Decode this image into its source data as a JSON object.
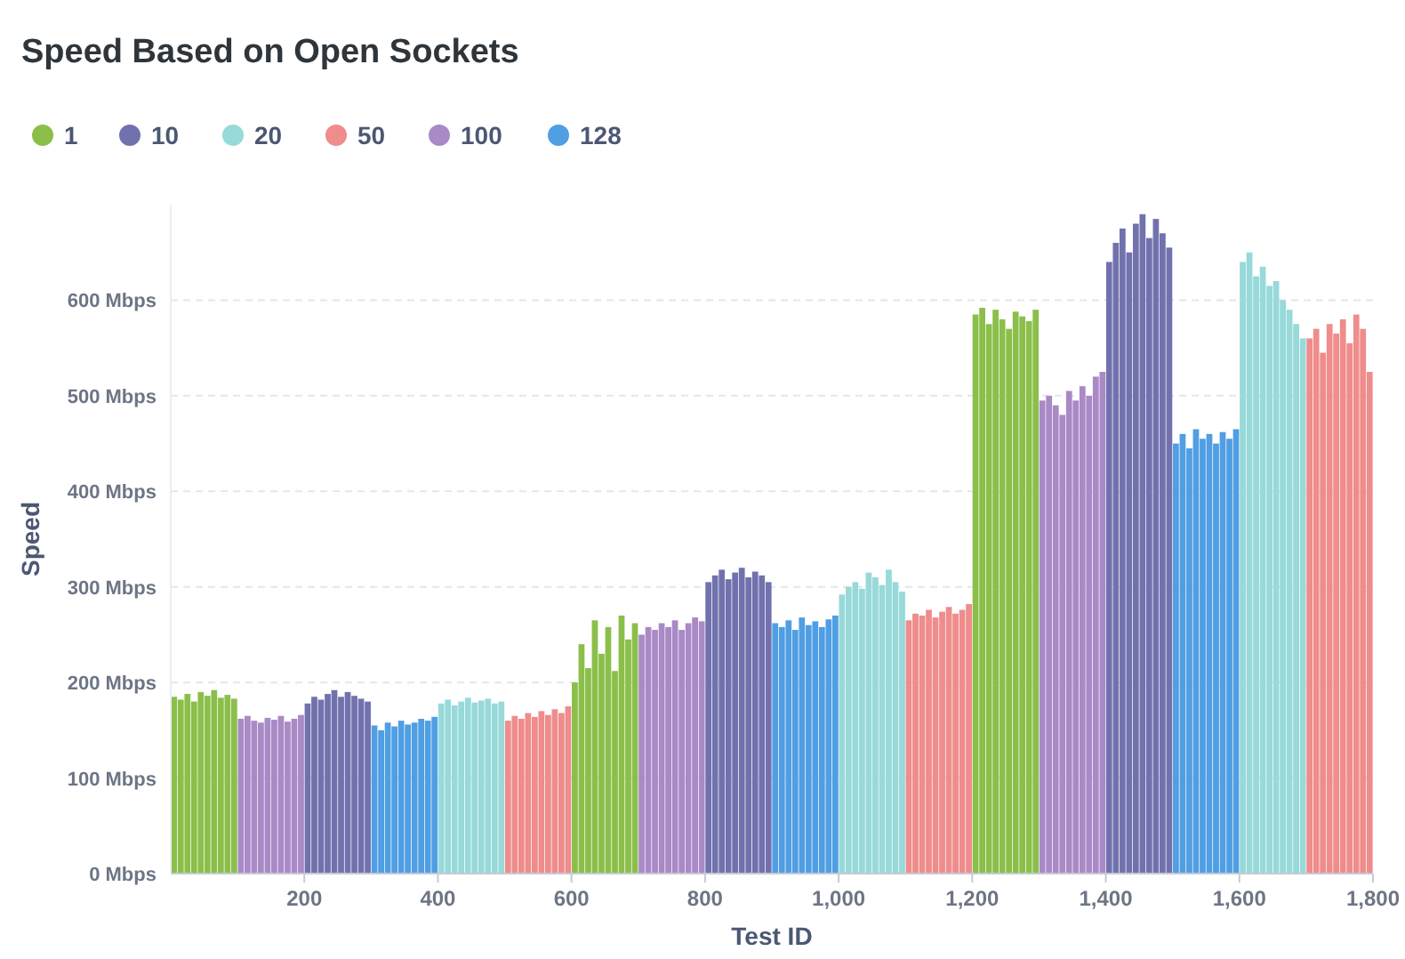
{
  "chart_data": {
    "type": "bar",
    "title": "Speed Based on Open Sockets",
    "xlabel": "Test ID",
    "ylabel": "Speed",
    "legend": "top left",
    "grid": "y",
    "xlim": [
      0,
      1800
    ],
    "xticks": [
      200,
      400,
      600,
      800,
      {
        "value": 1000,
        "label": "1,000"
      },
      {
        "value": 1200,
        "label": "1,200"
      },
      {
        "value": 1400,
        "label": "1,400"
      },
      {
        "value": 1600,
        "label": "1,600"
      },
      {
        "value": 1800,
        "label": "1,800"
      }
    ],
    "ylim": [
      0,
      700
    ],
    "yticks": [
      {
        "value": 0,
        "label": "0 Mbps"
      },
      {
        "value": 100,
        "label": "100 Mbps"
      },
      {
        "value": 200,
        "label": "200 Mbps"
      },
      {
        "value": 300,
        "label": "300 Mbps"
      },
      {
        "value": 400,
        "label": "400 Mbps"
      },
      {
        "value": 500,
        "label": "500 Mbps"
      },
      {
        "value": 600,
        "label": "600 Mbps"
      }
    ],
    "series": [
      {
        "name": "1",
        "color": "#8bbf4a",
        "x": [
          5,
          15,
          25,
          35,
          45,
          55,
          65,
          75,
          85,
          95,
          605,
          615,
          625,
          635,
          645,
          655,
          665,
          675,
          685,
          695,
          1205,
          1215,
          1225,
          1235,
          1245,
          1255,
          1265,
          1275,
          1285,
          1295
        ],
        "values": [
          185,
          182,
          188,
          180,
          190,
          186,
          192,
          184,
          187,
          183,
          200,
          240,
          215,
          265,
          230,
          258,
          212,
          270,
          245,
          262,
          585,
          592,
          575,
          590,
          580,
          570,
          588,
          583,
          578,
          590
        ]
      },
      {
        "name": "10",
        "color": "#7172ad",
        "x": [
          205,
          215,
          225,
          235,
          245,
          255,
          265,
          275,
          285,
          295,
          805,
          815,
          825,
          835,
          845,
          855,
          865,
          875,
          885,
          895,
          1405,
          1415,
          1425,
          1435,
          1445,
          1455,
          1465,
          1475,
          1485,
          1495
        ],
        "values": [
          178,
          185,
          182,
          188,
          192,
          185,
          190,
          186,
          183,
          180,
          305,
          312,
          318,
          308,
          315,
          320,
          310,
          316,
          312,
          305,
          640,
          660,
          675,
          650,
          680,
          690,
          665,
          685,
          670,
          655
        ]
      },
      {
        "name": "20",
        "color": "#98d9d9",
        "x": [
          405,
          415,
          425,
          435,
          445,
          455,
          465,
          475,
          485,
          495,
          1005,
          1015,
          1025,
          1035,
          1045,
          1055,
          1065,
          1075,
          1085,
          1095,
          1605,
          1615,
          1625,
          1635,
          1645,
          1655,
          1665,
          1675,
          1685,
          1695
        ],
        "values": [
          178,
          182,
          176,
          180,
          184,
          179,
          181,
          183,
          178,
          180,
          292,
          300,
          305,
          298,
          315,
          310,
          302,
          318,
          305,
          295,
          640,
          650,
          625,
          635,
          615,
          620,
          600,
          590,
          575,
          560
        ]
      },
      {
        "name": "50",
        "color": "#ef8c8c",
        "x": [
          505,
          515,
          525,
          535,
          545,
          555,
          565,
          575,
          585,
          595,
          1105,
          1115,
          1125,
          1135,
          1145,
          1155,
          1165,
          1175,
          1185,
          1195,
          1705,
          1715,
          1725,
          1735,
          1745,
          1755,
          1765,
          1775,
          1785,
          1795
        ],
        "values": [
          160,
          165,
          162,
          168,
          164,
          170,
          166,
          172,
          168,
          175,
          265,
          272,
          270,
          276,
          268,
          274,
          279,
          272,
          276,
          282,
          560,
          570,
          545,
          575,
          565,
          580,
          555,
          585,
          570,
          525
        ]
      },
      {
        "name": "100",
        "color": "#a989c6",
        "x": [
          105,
          115,
          125,
          135,
          145,
          155,
          165,
          175,
          185,
          195,
          705,
          715,
          725,
          735,
          745,
          755,
          765,
          775,
          785,
          795,
          1305,
          1315,
          1325,
          1335,
          1345,
          1355,
          1365,
          1375,
          1385,
          1395
        ],
        "values": [
          162,
          165,
          160,
          158,
          163,
          161,
          165,
          159,
          162,
          166,
          250,
          258,
          255,
          262,
          258,
          265,
          255,
          262,
          268,
          264,
          495,
          500,
          490,
          480,
          505,
          495,
          510,
          500,
          520,
          525
        ]
      },
      {
        "name": "128",
        "color": "#509ee3",
        "x": [
          305,
          315,
          325,
          335,
          345,
          355,
          365,
          375,
          385,
          395,
          905,
          915,
          925,
          935,
          945,
          955,
          965,
          975,
          985,
          995,
          1505,
          1515,
          1525,
          1535,
          1545,
          1555,
          1565,
          1575,
          1585,
          1595
        ],
        "values": [
          155,
          150,
          158,
          154,
          160,
          156,
          158,
          162,
          160,
          164,
          262,
          258,
          265,
          255,
          268,
          260,
          264,
          258,
          266,
          270,
          450,
          460,
          445,
          465,
          455,
          460,
          450,
          462,
          455,
          465
        ]
      }
    ]
  }
}
